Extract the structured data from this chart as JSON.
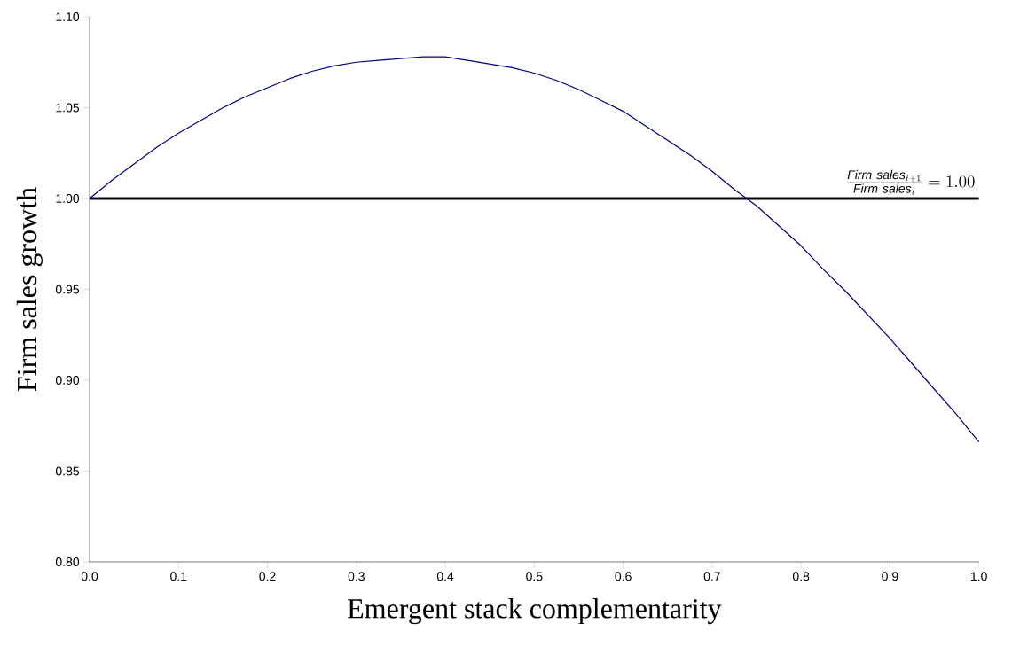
{
  "chart_data": {
    "type": "line",
    "xlabel": "Emergent stack complementarity",
    "ylabel": "Firm sales growth",
    "x": [
      0,
      0.025,
      0.05,
      0.075,
      0.1,
      0.125,
      0.15,
      0.175,
      0.2,
      0.225,
      0.25,
      0.275,
      0.3,
      0.325,
      0.35,
      0.375,
      0.4,
      0.425,
      0.45,
      0.475,
      0.5,
      0.525,
      0.55,
      0.575,
      0.6,
      0.625,
      0.65,
      0.675,
      0.7,
      0.725,
      0.75,
      0.775,
      0.8,
      0.825,
      0.85,
      0.875,
      0.9,
      0.925,
      0.95,
      0.975,
      1.0
    ],
    "series": [
      {
        "color": "#000080",
        "values": [
          1.0,
          1.01,
          1.019,
          1.028,
          1.036,
          1.043,
          1.05,
          1.056,
          1.061,
          1.066,
          1.07,
          1.073,
          1.075,
          1.076,
          1.077,
          1.078,
          1.078,
          1.076,
          1.074,
          1.072,
          1.069,
          1.065,
          1.06,
          1.054,
          1.048,
          1.04,
          1.032,
          1.024,
          1.015,
          1.005,
          0.996,
          0.985,
          0.974,
          0.961,
          0.949,
          0.936,
          0.923,
          0.909,
          0.895,
          0.881,
          0.866
        ]
      }
    ],
    "xlim": [
      0,
      1.0
    ],
    "ylim": [
      0.8,
      1.1
    ],
    "xticks": [
      {
        "value": 0,
        "label": "0.0"
      },
      0.1,
      0.2,
      0.3,
      0.4,
      0.5,
      0.6,
      0.7,
      0.8,
      0.9,
      {
        "value": 1.0,
        "label": "1.0"
      }
    ],
    "yticks": [
      {
        "value": 0.8,
        "label": "0.80"
      },
      0.85,
      {
        "value": 0.9,
        "label": "0.90"
      },
      0.95,
      {
        "value": 1.0,
        "label": "1.00"
      },
      1.05,
      {
        "value": 1.1,
        "label": "1.10"
      }
    ],
    "ref_lines": [
      {
        "axis": "y",
        "value": 1.0,
        "color": "#000000",
        "label": "\\frac{\\mathit{Firm\\ sales}_{t+1}}{\\mathit{Firm\\ sales}_{t}}=1.00"
      }
    ],
    "grid": false,
    "marker": "none",
    "line_style": "solid"
  }
}
